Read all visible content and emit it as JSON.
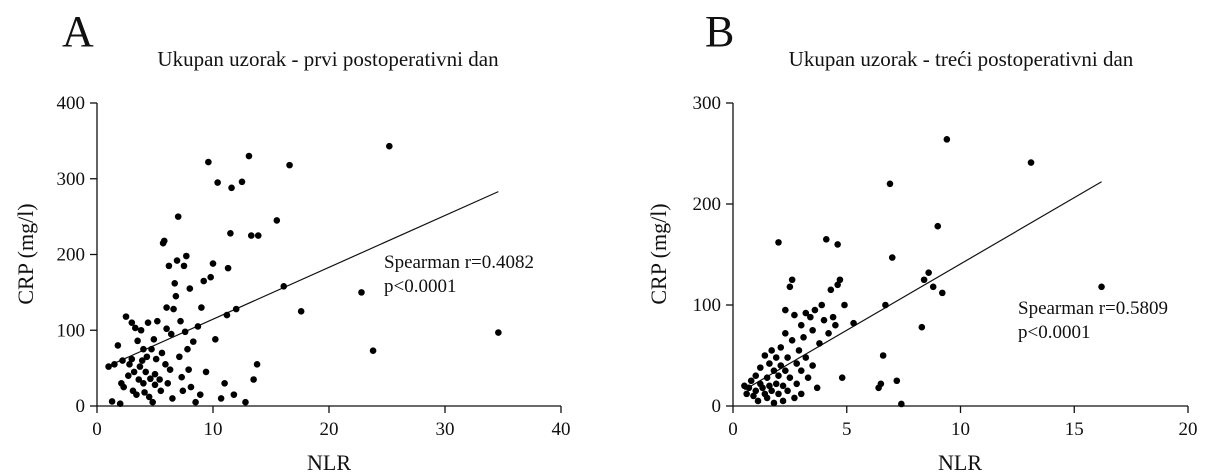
{
  "chart_data": [
    {
      "type": "scatter",
      "panel_label": "A",
      "title": "Ukupan uzorak - prvi postoperativni dan",
      "xlabel": "NLR",
      "ylabel": "CRP (mg/l)",
      "xlim": [
        0,
        40
      ],
      "ylim": [
        0,
        400
      ],
      "xticks": [
        "0",
        "10",
        "20",
        "30",
        "40"
      ],
      "yticks": [
        "0",
        "100",
        "200",
        "300",
        "400"
      ],
      "annotation": [
        "Spearman r=0.4082",
        "p<0.0001"
      ],
      "regression": {
        "x": [
          1.0,
          34.6
        ],
        "y": [
          53,
          283
        ]
      },
      "points": [
        [
          1.0,
          52
        ],
        [
          1.3,
          6
        ],
        [
          1.5,
          55
        ],
        [
          1.8,
          80
        ],
        [
          2.0,
          3
        ],
        [
          2.1,
          30
        ],
        [
          2.2,
          60
        ],
        [
          2.3,
          25
        ],
        [
          2.5,
          118
        ],
        [
          2.7,
          40
        ],
        [
          2.8,
          55
        ],
        [
          3.0,
          62
        ],
        [
          3.0,
          110
        ],
        [
          3.1,
          20
        ],
        [
          3.2,
          45
        ],
        [
          3.3,
          103
        ],
        [
          3.4,
          15
        ],
        [
          3.5,
          86
        ],
        [
          3.6,
          35
        ],
        [
          3.7,
          52
        ],
        [
          3.8,
          100
        ],
        [
          3.9,
          60
        ],
        [
          4.0,
          75
        ],
        [
          4.0,
          30
        ],
        [
          4.1,
          18
        ],
        [
          4.2,
          45
        ],
        [
          4.3,
          65
        ],
        [
          4.4,
          110
        ],
        [
          4.5,
          12
        ],
        [
          4.6,
          36
        ],
        [
          4.7,
          75
        ],
        [
          4.8,
          5
        ],
        [
          4.9,
          88
        ],
        [
          5.0,
          42
        ],
        [
          5.0,
          28
        ],
        [
          5.1,
          62
        ],
        [
          5.2,
          112
        ],
        [
          5.4,
          35
        ],
        [
          5.5,
          20
        ],
        [
          5.6,
          70
        ],
        [
          5.7,
          215
        ],
        [
          5.8,
          218
        ],
        [
          5.9,
          55
        ],
        [
          6.0,
          130
        ],
        [
          6.0,
          102
        ],
        [
          6.1,
          30
        ],
        [
          6.2,
          185
        ],
        [
          6.3,
          48
        ],
        [
          6.4,
          95
        ],
        [
          6.5,
          10
        ],
        [
          6.6,
          128
        ],
        [
          6.7,
          162
        ],
        [
          6.8,
          145
        ],
        [
          6.9,
          192
        ],
        [
          7.0,
          250
        ],
        [
          7.1,
          65
        ],
        [
          7.2,
          112
        ],
        [
          7.3,
          38
        ],
        [
          7.4,
          20
        ],
        [
          7.5,
          185
        ],
        [
          7.6,
          98
        ],
        [
          7.7,
          198
        ],
        [
          7.8,
          75
        ],
        [
          7.9,
          48
        ],
        [
          8.0,
          155
        ],
        [
          8.1,
          25
        ],
        [
          8.3,
          85
        ],
        [
          8.5,
          5
        ],
        [
          8.7,
          105
        ],
        [
          8.9,
          15
        ],
        [
          9.0,
          130
        ],
        [
          9.2,
          165
        ],
        [
          9.4,
          45
        ],
        [
          9.6,
          322
        ],
        [
          9.8,
          170
        ],
        [
          10.0,
          188
        ],
        [
          10.2,
          88
        ],
        [
          10.4,
          295
        ],
        [
          10.7,
          10
        ],
        [
          11.0,
          30
        ],
        [
          11.2,
          120
        ],
        [
          11.3,
          182
        ],
        [
          11.5,
          228
        ],
        [
          11.6,
          288
        ],
        [
          11.8,
          15
        ],
        [
          12.0,
          128
        ],
        [
          12.5,
          296
        ],
        [
          12.8,
          5
        ],
        [
          13.1,
          330
        ],
        [
          13.3,
          225
        ],
        [
          13.5,
          35
        ],
        [
          13.8,
          55
        ],
        [
          13.9,
          225
        ],
        [
          15.5,
          245
        ],
        [
          16.1,
          158
        ],
        [
          16.6,
          318
        ],
        [
          17.6,
          125
        ],
        [
          22.8,
          150
        ],
        [
          23.8,
          73
        ],
        [
          25.2,
          343
        ],
        [
          34.6,
          97
        ]
      ]
    },
    {
      "type": "scatter",
      "panel_label": "B",
      "title": "Ukupan uzorak - treći postoperativni dan",
      "xlabel": "NLR",
      "ylabel": "CRP (mg/l)",
      "xlim": [
        0,
        20
      ],
      "ylim": [
        0,
        300
      ],
      "xticks": [
        "0",
        "5",
        "10",
        "15",
        "20"
      ],
      "yticks": [
        "0",
        "100",
        "200",
        "300"
      ],
      "annotation": [
        "Spearman r=0.5809",
        "p<0.0001"
      ],
      "regression": {
        "x": [
          0.5,
          16.2
        ],
        "y": [
          16,
          222
        ]
      },
      "points": [
        [
          0.5,
          20
        ],
        [
          0.6,
          12
        ],
        [
          0.7,
          18
        ],
        [
          0.8,
          25
        ],
        [
          0.9,
          10
        ],
        [
          1.0,
          30
        ],
        [
          1.0,
          15
        ],
        [
          1.1,
          5
        ],
        [
          1.2,
          22
        ],
        [
          1.2,
          38
        ],
        [
          1.3,
          18
        ],
        [
          1.4,
          12
        ],
        [
          1.4,
          50
        ],
        [
          1.5,
          28
        ],
        [
          1.5,
          8
        ],
        [
          1.6,
          42
        ],
        [
          1.6,
          20
        ],
        [
          1.7,
          55
        ],
        [
          1.7,
          15
        ],
        [
          1.8,
          35
        ],
        [
          1.8,
          3
        ],
        [
          1.9,
          22
        ],
        [
          1.9,
          48
        ],
        [
          2.0,
          30
        ],
        [
          2.0,
          162
        ],
        [
          2.0,
          12
        ],
        [
          2.1,
          58
        ],
        [
          2.1,
          40
        ],
        [
          2.2,
          20
        ],
        [
          2.2,
          5
        ],
        [
          2.3,
          72
        ],
        [
          2.3,
          35
        ],
        [
          2.3,
          95
        ],
        [
          2.4,
          48
        ],
        [
          2.4,
          15
        ],
        [
          2.5,
          118
        ],
        [
          2.5,
          28
        ],
        [
          2.6,
          125
        ],
        [
          2.6,
          65
        ],
        [
          2.7,
          8
        ],
        [
          2.7,
          90
        ],
        [
          2.8,
          42
        ],
        [
          2.8,
          22
        ],
        [
          2.9,
          55
        ],
        [
          3.0,
          80
        ],
        [
          3.0,
          35
        ],
        [
          3.0,
          12
        ],
        [
          3.1,
          68
        ],
        [
          3.2,
          92
        ],
        [
          3.2,
          48
        ],
        [
          3.3,
          28
        ],
        [
          3.4,
          88
        ],
        [
          3.5,
          75
        ],
        [
          3.5,
          40
        ],
        [
          3.6,
          95
        ],
        [
          3.7,
          18
        ],
        [
          3.8,
          62
        ],
        [
          3.9,
          100
        ],
        [
          4.0,
          85
        ],
        [
          4.1,
          165
        ],
        [
          4.2,
          72
        ],
        [
          4.3,
          115
        ],
        [
          4.4,
          88
        ],
        [
          4.5,
          80
        ],
        [
          4.6,
          160
        ],
        [
          4.6,
          120
        ],
        [
          4.7,
          125
        ],
        [
          4.8,
          28
        ],
        [
          4.9,
          100
        ],
        [
          5.3,
          82
        ],
        [
          6.4,
          18
        ],
        [
          6.5,
          22
        ],
        [
          6.6,
          50
        ],
        [
          6.7,
          100
        ],
        [
          6.9,
          220
        ],
        [
          7.0,
          147
        ],
        [
          7.2,
          25
        ],
        [
          7.4,
          2
        ],
        [
          8.3,
          78
        ],
        [
          8.4,
          125
        ],
        [
          8.6,
          132
        ],
        [
          8.8,
          118
        ],
        [
          9.0,
          178
        ],
        [
          9.2,
          112
        ],
        [
          9.4,
          264
        ],
        [
          13.1,
          241
        ],
        [
          16.2,
          118
        ]
      ]
    }
  ]
}
